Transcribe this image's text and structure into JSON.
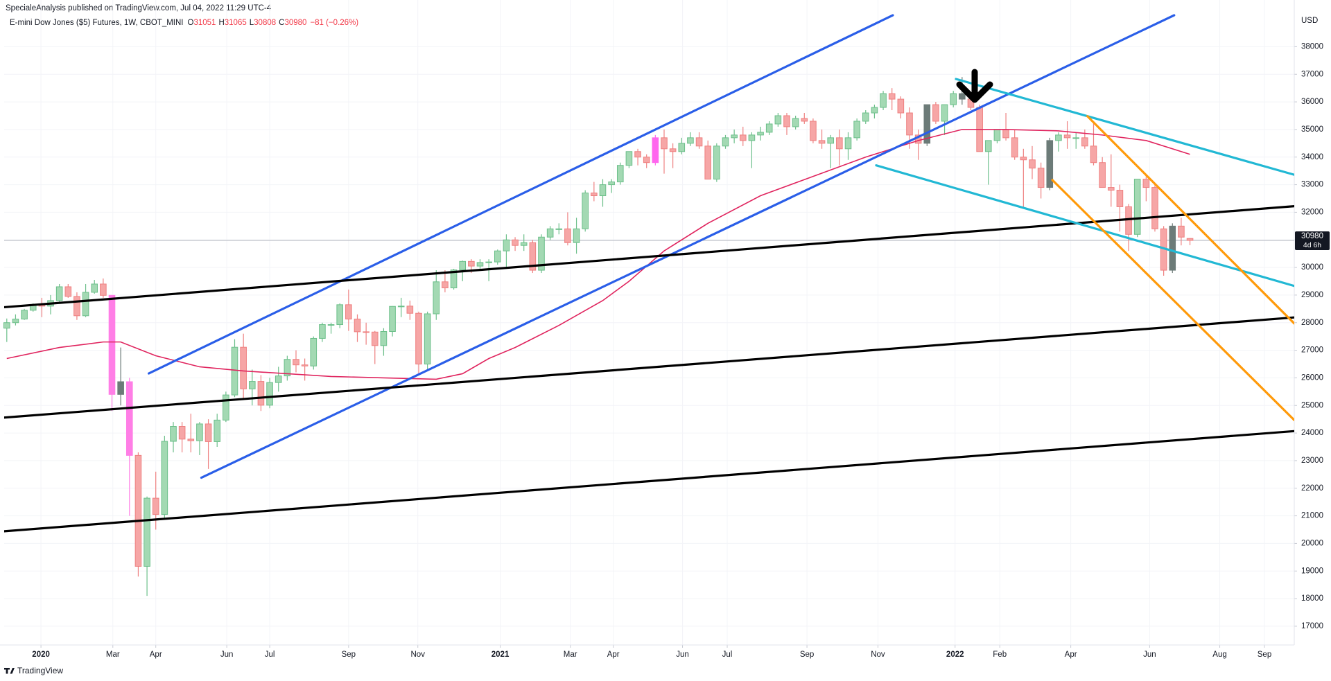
{
  "header": {
    "published": "SpecialeAnalysis published on TradingView.com, Jul 04, 2022 11:29 UTC-4",
    "logo": "TradingView"
  },
  "chart_data": {
    "type": "candlestick",
    "title": "E-mini Dow Jones ($5) Futures, 1W, CBOT_MINI",
    "ohlc_letters": [
      "O",
      "H",
      "L",
      "C"
    ],
    "change": "−81 (−0.26%)",
    "currency": "USD",
    "countdown": "4d 6h",
    "up_color": "#a3d9b3",
    "up_border": "#6cbf8a",
    "down_color": "#f6a6a6",
    "down_border": "#ee8080",
    "custom_colors": [
      {
        "index": 12,
        "color": "#ff7ee6"
      },
      {
        "index": 14,
        "color": "#ff7ee6"
      },
      {
        "index": 74,
        "color": "#ff66ee"
      },
      {
        "index": 13,
        "color": "#6c7b78"
      },
      {
        "index": 105,
        "color": "#6c7b78"
      },
      {
        "index": 109,
        "color": "#6c7b78"
      },
      {
        "index": 119,
        "color": "#6c7b78"
      },
      {
        "index": 133,
        "color": "#6c7b78"
      }
    ],
    "candles": [
      [
        27800,
        28150,
        27300,
        28000
      ],
      [
        28000,
        28300,
        27900,
        28130
      ],
      [
        28130,
        28500,
        28100,
        28450
      ],
      [
        28450,
        28700,
        28400,
        28650
      ],
      [
        28650,
        28900,
        28200,
        28600
      ],
      [
        28600,
        29000,
        28300,
        28800
      ],
      [
        28800,
        29400,
        28750,
        29300
      ],
      [
        29300,
        29400,
        28900,
        28950
      ],
      [
        28950,
        29100,
        28100,
        28250
      ],
      [
        28250,
        29400,
        28200,
        29100
      ],
      [
        29100,
        29550,
        29050,
        29400
      ],
      [
        29400,
        29600,
        28900,
        28990
      ],
      [
        28990,
        29000,
        24800,
        25400
      ],
      [
        25400,
        27100,
        25000,
        25860
      ],
      [
        25860,
        26000,
        21000,
        23190
      ],
      [
        23190,
        23300,
        18800,
        19170
      ],
      [
        19170,
        21700,
        18100,
        21640
      ],
      [
        21640,
        22600,
        20500,
        21050
      ],
      [
        21050,
        23900,
        20900,
        23700
      ],
      [
        23700,
        24400,
        23300,
        24240
      ],
      [
        24240,
        24400,
        23300,
        23780
      ],
      [
        23780,
        24700,
        23300,
        23720
      ],
      [
        23720,
        24400,
        23200,
        24330
      ],
      [
        24330,
        24500,
        22700,
        23690
      ],
      [
        23690,
        24700,
        23500,
        24470
      ],
      [
        24470,
        25500,
        24400,
        25380
      ],
      [
        25380,
        27400,
        25300,
        27110
      ],
      [
        27110,
        27600,
        25200,
        25600
      ],
      [
        25600,
        26300,
        25000,
        25870
      ],
      [
        25870,
        26100,
        24800,
        25010
      ],
      [
        25010,
        26000,
        24900,
        25830
      ],
      [
        25830,
        26400,
        25500,
        26070
      ],
      [
        26070,
        26800,
        25900,
        26670
      ],
      [
        26670,
        27000,
        26200,
        26470
      ],
      [
        26470,
        26700,
        25900,
        26430
      ],
      [
        26430,
        27500,
        26300,
        27430
      ],
      [
        27430,
        28000,
        27300,
        27930
      ],
      [
        27930,
        28000,
        27600,
        27930
      ],
      [
        27930,
        28700,
        27800,
        28650
      ],
      [
        28650,
        29200,
        27700,
        28130
      ],
      [
        28130,
        28300,
        27300,
        27670
      ],
      [
        27670,
        28000,
        27200,
        27660
      ],
      [
        27660,
        27700,
        26500,
        27170
      ],
      [
        27170,
        27800,
        26800,
        27680
      ],
      [
        27680,
        28600,
        27500,
        28590
      ],
      [
        28590,
        28900,
        28200,
        28600
      ],
      [
        28600,
        28800,
        28100,
        28340
      ],
      [
        28340,
        28400,
        26100,
        26500
      ],
      [
        26500,
        28400,
        26300,
        28320
      ],
      [
        28320,
        29900,
        28100,
        29480
      ],
      [
        29480,
        29900,
        29100,
        29260
      ],
      [
        29260,
        29950,
        29200,
        29910
      ],
      [
        29910,
        30250,
        29500,
        30220
      ],
      [
        30220,
        30300,
        29800,
        30050
      ],
      [
        30050,
        30300,
        29900,
        30180
      ],
      [
        30180,
        30300,
        29500,
        30200
      ],
      [
        30200,
        30650,
        30100,
        30600
      ],
      [
        30600,
        31200,
        30000,
        31000
      ],
      [
        31000,
        31100,
        30600,
        30800
      ],
      [
        30800,
        31200,
        30600,
        30900
      ],
      [
        30900,
        31000,
        29800,
        29900
      ],
      [
        29900,
        31200,
        29800,
        31100
      ],
      [
        31100,
        31500,
        31000,
        31400
      ],
      [
        31400,
        31600,
        31200,
        31400
      ],
      [
        31400,
        32000,
        30800,
        30900
      ],
      [
        30900,
        31800,
        30500,
        31400
      ],
      [
        31400,
        32800,
        31300,
        32700
      ],
      [
        32700,
        33100,
        32400,
        32600
      ],
      [
        32600,
        33200,
        32200,
        33000
      ],
      [
        33000,
        33200,
        32700,
        33100
      ],
      [
        33100,
        33800,
        33000,
        33700
      ],
      [
        33700,
        34200,
        33600,
        34200
      ],
      [
        34200,
        34300,
        33700,
        34000
      ],
      [
        34000,
        34100,
        33600,
        33800
      ],
      [
        33800,
        34800,
        33700,
        34700
      ],
      [
        34700,
        35000,
        33400,
        34300
      ],
      [
        34300,
        34500,
        33600,
        34200
      ],
      [
        34200,
        34700,
        34100,
        34500
      ],
      [
        34500,
        34900,
        34400,
        34700
      ],
      [
        34700,
        34900,
        34300,
        34400
      ],
      [
        34400,
        34600,
        33200,
        33200
      ],
      [
        33200,
        34500,
        33100,
        34400
      ],
      [
        34400,
        34800,
        34300,
        34700
      ],
      [
        34700,
        35000,
        34500,
        34800
      ],
      [
        34800,
        35100,
        34400,
        34600
      ],
      [
        34600,
        34900,
        33600,
        34800
      ],
      [
        34800,
        35100,
        34600,
        34900
      ],
      [
        34900,
        35300,
        34800,
        35200
      ],
      [
        35200,
        35600,
        35100,
        35500
      ],
      [
        35500,
        35600,
        34800,
        35100
      ],
      [
        35100,
        35500,
        35000,
        35400
      ],
      [
        35400,
        35600,
        35200,
        35300
      ],
      [
        35300,
        35400,
        34500,
        34600
      ],
      [
        34600,
        35000,
        34300,
        34500
      ],
      [
        34500,
        34800,
        33600,
        34700
      ],
      [
        34700,
        35000,
        33700,
        34300
      ],
      [
        34300,
        34900,
        33900,
        34700
      ],
      [
        34700,
        35400,
        34600,
        35300
      ],
      [
        35300,
        35700,
        35200,
        35600
      ],
      [
        35600,
        35900,
        35400,
        35800
      ],
      [
        35800,
        36400,
        35700,
        36300
      ],
      [
        36300,
        36500,
        35700,
        36100
      ],
      [
        36100,
        36200,
        35400,
        35600
      ],
      [
        35600,
        35800,
        34300,
        34800
      ],
      [
        34800,
        35000,
        33900,
        34500
      ],
      [
        34500,
        35900,
        34400,
        35900
      ],
      [
        35900,
        36000,
        35200,
        35300
      ],
      [
        35300,
        35900,
        34800,
        35900
      ],
      [
        35900,
        36400,
        35800,
        36300
      ],
      [
        36300,
        36900,
        35900,
        36100
      ],
      [
        36100,
        36200,
        35700,
        35800
      ],
      [
        35800,
        35900,
        34200,
        34200
      ],
      [
        34200,
        34600,
        33000,
        34600
      ],
      [
        34600,
        35000,
        34500,
        35000
      ],
      [
        35000,
        35600,
        34600,
        34700
      ],
      [
        34700,
        35000,
        33900,
        34000
      ],
      [
        34000,
        34300,
        32200,
        33900
      ],
      [
        33900,
        34400,
        33200,
        33600
      ],
      [
        33600,
        33800,
        32500,
        32900
      ],
      [
        32900,
        34700,
        32800,
        34600
      ],
      [
        34600,
        34900,
        34200,
        34800
      ],
      [
        34800,
        35300,
        34300,
        34700
      ],
      [
        34700,
        34900,
        34300,
        34700
      ],
      [
        34700,
        35000,
        34300,
        34400
      ],
      [
        34400,
        35300,
        33700,
        33800
      ],
      [
        33800,
        34000,
        32900,
        32900
      ],
      [
        32900,
        34100,
        32200,
        32800
      ],
      [
        32800,
        33000,
        31300,
        32200
      ],
      [
        32200,
        32300,
        30600,
        31200
      ],
      [
        31200,
        33200,
        31100,
        33200
      ],
      [
        33200,
        33300,
        32400,
        32900
      ],
      [
        32900,
        33000,
        31300,
        31400
      ],
      [
        31400,
        31500,
        29700,
        29900
      ],
      [
        29900,
        31600,
        29800,
        31500
      ],
      [
        31500,
        31800,
        30800,
        31100
      ],
      [
        31051,
        31065,
        30808,
        30980
      ]
    ],
    "ma": {
      "color": "#e0245e",
      "index": [
        0,
        6,
        11,
        13,
        17,
        22,
        27,
        37,
        43,
        49,
        52,
        55,
        58,
        63,
        68,
        71,
        75,
        80,
        86,
        92,
        98,
        104,
        109,
        114,
        120,
        125,
        130,
        135
      ],
      "values": [
        26700,
        27100,
        27300,
        27300,
        26800,
        26400,
        26250,
        26050,
        26000,
        25950,
        26150,
        26700,
        27100,
        27900,
        28800,
        29500,
        30600,
        31600,
        32600,
        33300,
        34000,
        34600,
        35000,
        35000,
        34950,
        34800,
        34600,
        34100
      ]
    },
    "drawings": [
      {
        "color": "#2a5ee8",
        "x": [
          16.2,
          101.1
        ],
        "y": [
          26160,
          39140
        ]
      },
      {
        "color": "#2a5ee8",
        "x": [
          22.2,
          133.2
        ],
        "y": [
          22380,
          39140
        ]
      },
      {
        "color": "#000000",
        "x": [
          -0.3,
          146.9
        ],
        "y": [
          28560,
          32220
        ]
      },
      {
        "color": "#000000",
        "x": [
          -0.3,
          146.9
        ],
        "y": [
          24560,
          28190
        ]
      },
      {
        "color": "#000000",
        "x": [
          -0.3,
          146.9
        ],
        "y": [
          20440,
          24070
        ]
      },
      {
        "color": "#22b8d4",
        "x": [
          108.3,
          146.9
        ],
        "y": [
          36830,
          33360
        ]
      },
      {
        "color": "#22b8d4",
        "x": [
          99.2,
          146.9
        ],
        "y": [
          33700,
          29330
        ]
      },
      {
        "color": "#ff9a0a",
        "x": [
          123.3,
          146.9
        ],
        "y": [
          35480,
          27970
        ]
      },
      {
        "color": "#ff9a0a",
        "x": [
          119.3,
          146.9
        ],
        "y": [
          33170,
          24470
        ]
      }
    ],
    "xlim": [
      -0.3,
      146.9
    ],
    "ylim": [
      16320,
      39140
    ],
    "yticks": [
      17000,
      18000,
      19000,
      20000,
      21000,
      22000,
      23000,
      24000,
      25000,
      26000,
      27000,
      28000,
      29000,
      30000,
      31000,
      32000,
      33000,
      34000,
      35000,
      36000,
      37000,
      38000
    ],
    "xticks": [
      {
        "value": 3.9,
        "label": "2020"
      },
      {
        "value": 12.1,
        "label": "Mar"
      },
      {
        "value": 17,
        "label": "Apr"
      },
      {
        "value": 25.1,
        "label": "Jun"
      },
      {
        "value": 30,
        "label": "Jul"
      },
      {
        "value": 39,
        "label": "Sep"
      },
      {
        "value": 46.9,
        "label": "Nov"
      },
      {
        "value": 56.3,
        "label": "2021"
      },
      {
        "value": 64.3,
        "label": "Mar"
      },
      {
        "value": 69.2,
        "label": "Apr"
      },
      {
        "value": 77.1,
        "label": "Jun"
      },
      {
        "value": 82.2,
        "label": "Jul"
      },
      {
        "value": 91.3,
        "label": "Sep"
      },
      {
        "value": 99.4,
        "label": "Nov"
      },
      {
        "value": 108.2,
        "label": "2022"
      },
      {
        "value": 113.3,
        "label": "Feb"
      },
      {
        "value": 121.4,
        "label": "Apr"
      },
      {
        "value": 130.4,
        "label": "Jun"
      },
      {
        "value": 138.4,
        "label": "Aug"
      },
      {
        "value": 143.5,
        "label": "Sep"
      }
    ],
    "grid": true
  }
}
